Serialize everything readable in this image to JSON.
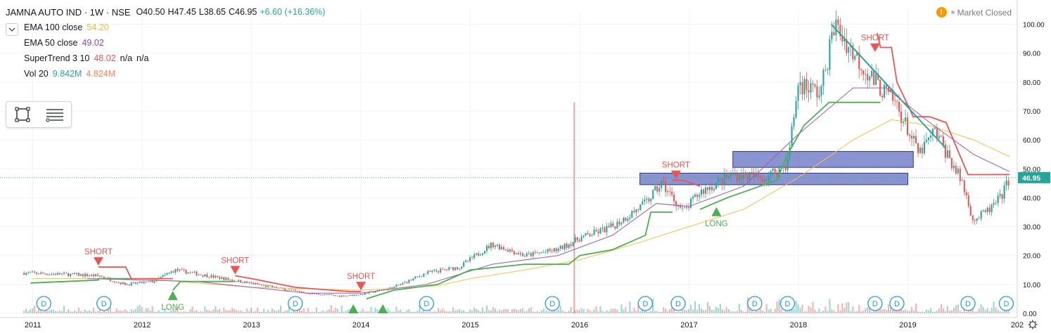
{
  "header": {
    "symbol": "JAMNA AUTO IND · 1W · NSE",
    "open": "O40.50",
    "high": "H47.45",
    "low": "L38.65",
    "close": "C46.95",
    "change": "+6.60 (+16.36%)",
    "market_status": "Market Closed"
  },
  "indicators": [
    {
      "name": "EMA 100 close",
      "values": [
        "54.20"
      ],
      "colors": [
        "#f0b73a"
      ]
    },
    {
      "name": "EMA 50 close",
      "values": [
        "49.02"
      ],
      "colors": [
        "#8e44ad"
      ]
    },
    {
      "name": "SuperTrend 3 10",
      "values": [
        "48.02",
        "n/a",
        "n/a"
      ],
      "colors": [
        "#ef5350",
        "#131722",
        "#131722"
      ]
    },
    {
      "name": "Vol 20",
      "values": [
        "9.842M",
        "4.824M"
      ],
      "colors": [
        "#26a69a",
        "#ff7f50"
      ]
    }
  ],
  "price_label": "46.95",
  "colors": {
    "up": "#26a69a",
    "down": "#ef5350",
    "ema100": "#f5c04a",
    "ema50": "#9b59b6",
    "st_up": "#4caf50",
    "st_down": "#ef5350",
    "zone": "#5b6bbf",
    "trendline": "#26a69a",
    "last_price": "#26a69a"
  },
  "chart_data": {
    "type": "candlestick",
    "timeframe": "1W",
    "x_ticks": [
      "2011",
      "2012",
      "2013",
      "2014",
      "2015",
      "2016",
      "2017",
      "2018",
      "2019",
      "202"
    ],
    "y_ticks": [
      "100.00",
      "90.00",
      "80.00",
      "70.00",
      "60.00",
      "50.00",
      "40.00",
      "30.00",
      "20.00",
      "10.00",
      "0.00"
    ],
    "ylim": [
      0,
      105
    ],
    "xlim": [
      2010.7,
      2020.0
    ],
    "price_path": [
      [
        2010.92,
        14
      ],
      [
        2011.3,
        13.5
      ],
      [
        2011.6,
        13
      ],
      [
        2011.85,
        10
      ],
      [
        2012.1,
        11
      ],
      [
        2012.3,
        15
      ],
      [
        2012.6,
        13
      ],
      [
        2012.9,
        11
      ],
      [
        2013.2,
        9
      ],
      [
        2013.5,
        7
      ],
      [
        2013.8,
        6
      ],
      [
        2014.0,
        6.5
      ],
      [
        2014.3,
        9
      ],
      [
        2014.6,
        14
      ],
      [
        2014.9,
        16
      ],
      [
        2015.2,
        24
      ],
      [
        2015.5,
        20
      ],
      [
        2015.8,
        22
      ],
      [
        2016.0,
        26
      ],
      [
        2016.3,
        30
      ],
      [
        2016.6,
        38
      ],
      [
        2016.75,
        45
      ],
      [
        2016.95,
        35
      ],
      [
        2017.1,
        42
      ],
      [
        2017.4,
        48
      ],
      [
        2017.7,
        47
      ],
      [
        2017.9,
        52
      ],
      [
        2018.0,
        80
      ],
      [
        2018.2,
        76
      ],
      [
        2018.33,
        100
      ],
      [
        2018.5,
        90
      ],
      [
        2018.7,
        80
      ],
      [
        2018.9,
        72
      ],
      [
        2019.1,
        55
      ],
      [
        2019.25,
        63
      ],
      [
        2019.5,
        45
      ],
      [
        2019.6,
        32
      ],
      [
        2019.75,
        36
      ],
      [
        2019.85,
        40
      ],
      [
        2019.93,
        46.95
      ]
    ],
    "ema100_path": [
      [
        2011.0,
        12
      ],
      [
        2012.0,
        12
      ],
      [
        2013.0,
        9
      ],
      [
        2014.0,
        8
      ],
      [
        2014.7,
        9.5
      ],
      [
        2015.0,
        12
      ],
      [
        2015.5,
        15
      ],
      [
        2016.0,
        18.5
      ],
      [
        2016.5,
        24
      ],
      [
        2017.0,
        30
      ],
      [
        2017.5,
        36
      ],
      [
        2018.0,
        47
      ],
      [
        2018.5,
        60
      ],
      [
        2018.85,
        67
      ],
      [
        2019.2,
        65
      ],
      [
        2019.6,
        60
      ],
      [
        2019.93,
        54.2
      ]
    ],
    "ema50_path": [
      [
        2011.5,
        12
      ],
      [
        2012.5,
        11
      ],
      [
        2013.5,
        7
      ],
      [
        2014.0,
        7
      ],
      [
        2014.6,
        10
      ],
      [
        2015.2,
        17
      ],
      [
        2015.8,
        20
      ],
      [
        2016.3,
        27
      ],
      [
        2016.7,
        38
      ],
      [
        2017.0,
        37
      ],
      [
        2017.5,
        44
      ],
      [
        2018.0,
        62
      ],
      [
        2018.5,
        78
      ],
      [
        2018.8,
        78
      ],
      [
        2019.2,
        66
      ],
      [
        2019.6,
        55
      ],
      [
        2019.93,
        49.02
      ]
    ],
    "supertrend_segments": [
      {
        "trend": "up",
        "points": [
          [
            2010.98,
            10.5
          ],
          [
            2011.3,
            11
          ],
          [
            2011.6,
            11.5
          ],
          [
            2011.6,
            12
          ],
          [
            2011.9,
            12
          ]
        ]
      },
      {
        "trend": "down",
        "points": [
          [
            2011.6,
            16
          ],
          [
            2011.85,
            16
          ],
          [
            2011.9,
            12
          ],
          [
            2012.28,
            12
          ]
        ]
      },
      {
        "trend": "up",
        "points": [
          [
            2012.28,
            8
          ],
          [
            2012.35,
            11
          ],
          [
            2012.85,
            11
          ]
        ]
      },
      {
        "trend": "down",
        "points": [
          [
            2012.85,
            13
          ],
          [
            2013.0,
            12
          ],
          [
            2013.4,
            9
          ],
          [
            2013.9,
            7.5
          ],
          [
            2014.0,
            7.5
          ]
        ]
      },
      {
        "trend": "up",
        "points": [
          [
            2014.05,
            5
          ],
          [
            2014.3,
            8
          ],
          [
            2014.7,
            10
          ],
          [
            2015.0,
            15
          ],
          [
            2015.5,
            17
          ],
          [
            2015.9,
            17
          ],
          [
            2016.0,
            20
          ],
          [
            2016.3,
            22
          ],
          [
            2016.6,
            27
          ],
          [
            2016.65,
            35
          ],
          [
            2016.85,
            35
          ]
        ]
      },
      {
        "trend": "down",
        "points": [
          [
            2016.85,
            46
          ],
          [
            2016.95,
            46
          ],
          [
            2017.1,
            44
          ]
        ]
      },
      {
        "trend": "up",
        "points": [
          [
            2017.1,
            36
          ],
          [
            2017.35,
            40
          ],
          [
            2017.5,
            42
          ],
          [
            2017.8,
            46
          ],
          [
            2017.9,
            55
          ],
          [
            2018.05,
            65
          ],
          [
            2018.28,
            73
          ],
          [
            2018.5,
            73
          ],
          [
            2018.75,
            73
          ]
        ]
      },
      {
        "trend": "down",
        "points": [
          [
            2018.72,
            97
          ],
          [
            2018.75,
            92
          ],
          [
            2018.85,
            92
          ],
          [
            2018.9,
            80
          ],
          [
            2019.05,
            68
          ],
          [
            2019.2,
            68
          ],
          [
            2019.35,
            66
          ],
          [
            2019.55,
            48
          ],
          [
            2019.93,
            48.02
          ]
        ]
      }
    ],
    "signals": [
      {
        "label": "SHORT",
        "x": 2011.6,
        "y": 16
      },
      {
        "label": "LONG",
        "x": 2012.28,
        "y": 8
      },
      {
        "label": "SHORT",
        "x": 2012.85,
        "y": 13
      },
      {
        "label": "SHORT",
        "x": 2014.0,
        "y": 7.5
      },
      {
        "label": "LONG",
        "x": 2013.93,
        "y": 0
      },
      {
        "label": "LONG",
        "x": 2014.2,
        "y": 0
      },
      {
        "label": "SHORT",
        "x": 2016.88,
        "y": 46
      },
      {
        "label": "LONG",
        "x": 2017.25,
        "y": 37
      },
      {
        "label": "SHORT",
        "x": 2018.7,
        "y": 90
      }
    ],
    "zones": [
      {
        "x": [
          2016.55,
          2019.0
        ],
        "y": [
          44.5,
          48.5
        ]
      },
      {
        "x": [
          2017.4,
          2019.05
        ],
        "y": [
          50.5,
          56
        ]
      }
    ],
    "trendline": [
      [
        2018.3,
        100
      ],
      [
        2019.35,
        57
      ]
    ],
    "dividend_markers": [
      2011.1,
      2011.65,
      2013.4,
      2014.6,
      2015.75,
      2016.6,
      2016.9,
      2017.6,
      2017.9,
      2018.7,
      2018.9,
      2019.55,
      2019.9
    ],
    "dividend_label": "D",
    "volume_spike": {
      "x": 2015.95,
      "value": 9.842
    }
  }
}
